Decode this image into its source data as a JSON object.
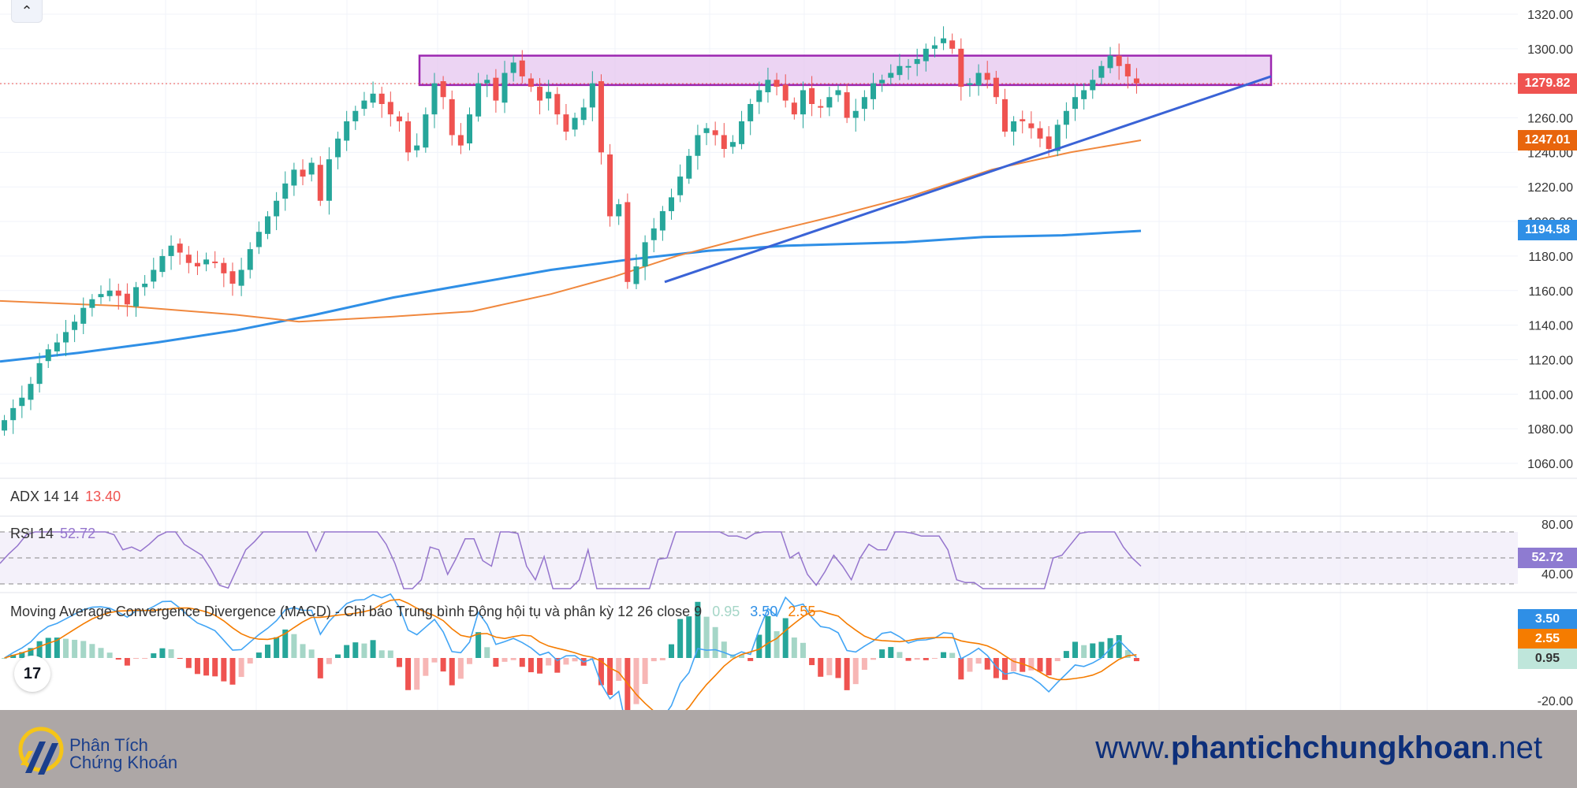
{
  "chart_data": {
    "type": "candlestick",
    "instrument_price_last": "1279.82",
    "price_axis": {
      "ylim": [
        1050,
        1325
      ],
      "ticks": [
        "1320.00",
        "1300.00",
        "1280.00",
        "1260.00",
        "1240.00",
        "1220.00",
        "1200.00",
        "1180.00",
        "1160.00",
        "1140.00",
        "1120.00",
        "1100.00",
        "1080.00",
        "1060.00"
      ]
    },
    "candles_close": [
      1085,
      1092,
      1098,
      1106,
      1118,
      1126,
      1130,
      1136,
      1142,
      1150,
      1155,
      1158,
      1160,
      1157,
      1152,
      1162,
      1164,
      1172,
      1180,
      1186,
      1182,
      1176,
      1174,
      1178,
      1176,
      1170,
      1164,
      1172,
      1184,
      1194,
      1203,
      1212,
      1222,
      1230,
      1226,
      1234,
      1212,
      1236,
      1248,
      1258,
      1264,
      1270,
      1274,
      1268,
      1262,
      1258,
      1240,
      1244,
      1262,
      1280,
      1272,
      1250,
      1244,
      1262,
      1280,
      1282,
      1270,
      1286,
      1292,
      1284,
      1278,
      1270,
      1275,
      1262,
      1252,
      1260,
      1266,
      1280,
      1240,
      1203,
      1210,
      1165,
      1174,
      1188,
      1196,
      1206,
      1214,
      1226,
      1238,
      1250,
      1254,
      1250,
      1242,
      1246,
      1258,
      1268,
      1276,
      1282,
      1278,
      1270,
      1262,
      1276,
      1268,
      1266,
      1272,
      1276,
      1260,
      1264,
      1272,
      1280,
      1282,
      1286,
      1290,
      1290,
      1294,
      1300,
      1302,
      1306,
      1300,
      1278,
      1280,
      1286,
      1282,
      1272,
      1252,
      1258,
      1258,
      1254,
      1248,
      1242,
      1256,
      1264,
      1272,
      1276,
      1282,
      1290,
      1296,
      1290,
      1284,
      1280
    ],
    "ma_orange": {
      "start": 1153,
      "points": [
        [
          0,
          1153
        ],
        [
          0.16,
          1150
        ],
        [
          0.35,
          1143
        ],
        [
          0.5,
          1146
        ],
        [
          0.6,
          1152
        ],
        [
          0.7,
          1165
        ],
        [
          0.82,
          1180
        ],
        [
          0.9,
          1192
        ],
        [
          1.0,
          1200
        ],
        [
          1.15,
          1215
        ],
        [
          1.25,
          1232
        ],
        [
          1.35,
          1240
        ],
        [
          1.42,
          1247.01
        ]
      ]
    },
    "ma_blue": {
      "end": "1194.58"
    },
    "ma_orange_last": "1247.01",
    "resistance_zone": {
      "top": 1296,
      "bottom": 1279
    },
    "trendline": {
      "from": 1165,
      "to": 1284
    },
    "adx": {
      "label": "ADX 14 14",
      "value": "13.40"
    },
    "rsi": {
      "label": "RSI 14",
      "value": "52.72",
      "ticks": [
        "80.00",
        "40.00"
      ],
      "last": "52.72"
    },
    "macd": {
      "label": "Moving Average Convergence Divergence (MACD) - Chỉ báo Trung bình Động hội tụ và phân kỳ 12 26 close 9",
      "hist": "0.95",
      "macd": "3.50",
      "signal": "2.55",
      "ticks": [
        "-20.00"
      ]
    }
  },
  "colors": {
    "up": "#26a69a",
    "down": "#ef5350",
    "ma_orange": "#f0883e",
    "ma_blue": "#2f8fe6",
    "trendline": "#3a63d6",
    "zone_border": "#9c27b0",
    "zone_fill": "#e7c9f0",
    "rsi_line": "#9575cd",
    "macd_line": "#42a5f5",
    "signal_line": "#f57c00"
  },
  "footer": {
    "brand_line1": "Phân Tích",
    "brand_line2": "Chứng Khoán",
    "website_prefix": "www.",
    "website_bold": "phantichchungkhoan",
    "website_suffix": ".net"
  },
  "icons": {
    "collapse": "chevron-up-icon",
    "logo": "tradingview-logo"
  }
}
